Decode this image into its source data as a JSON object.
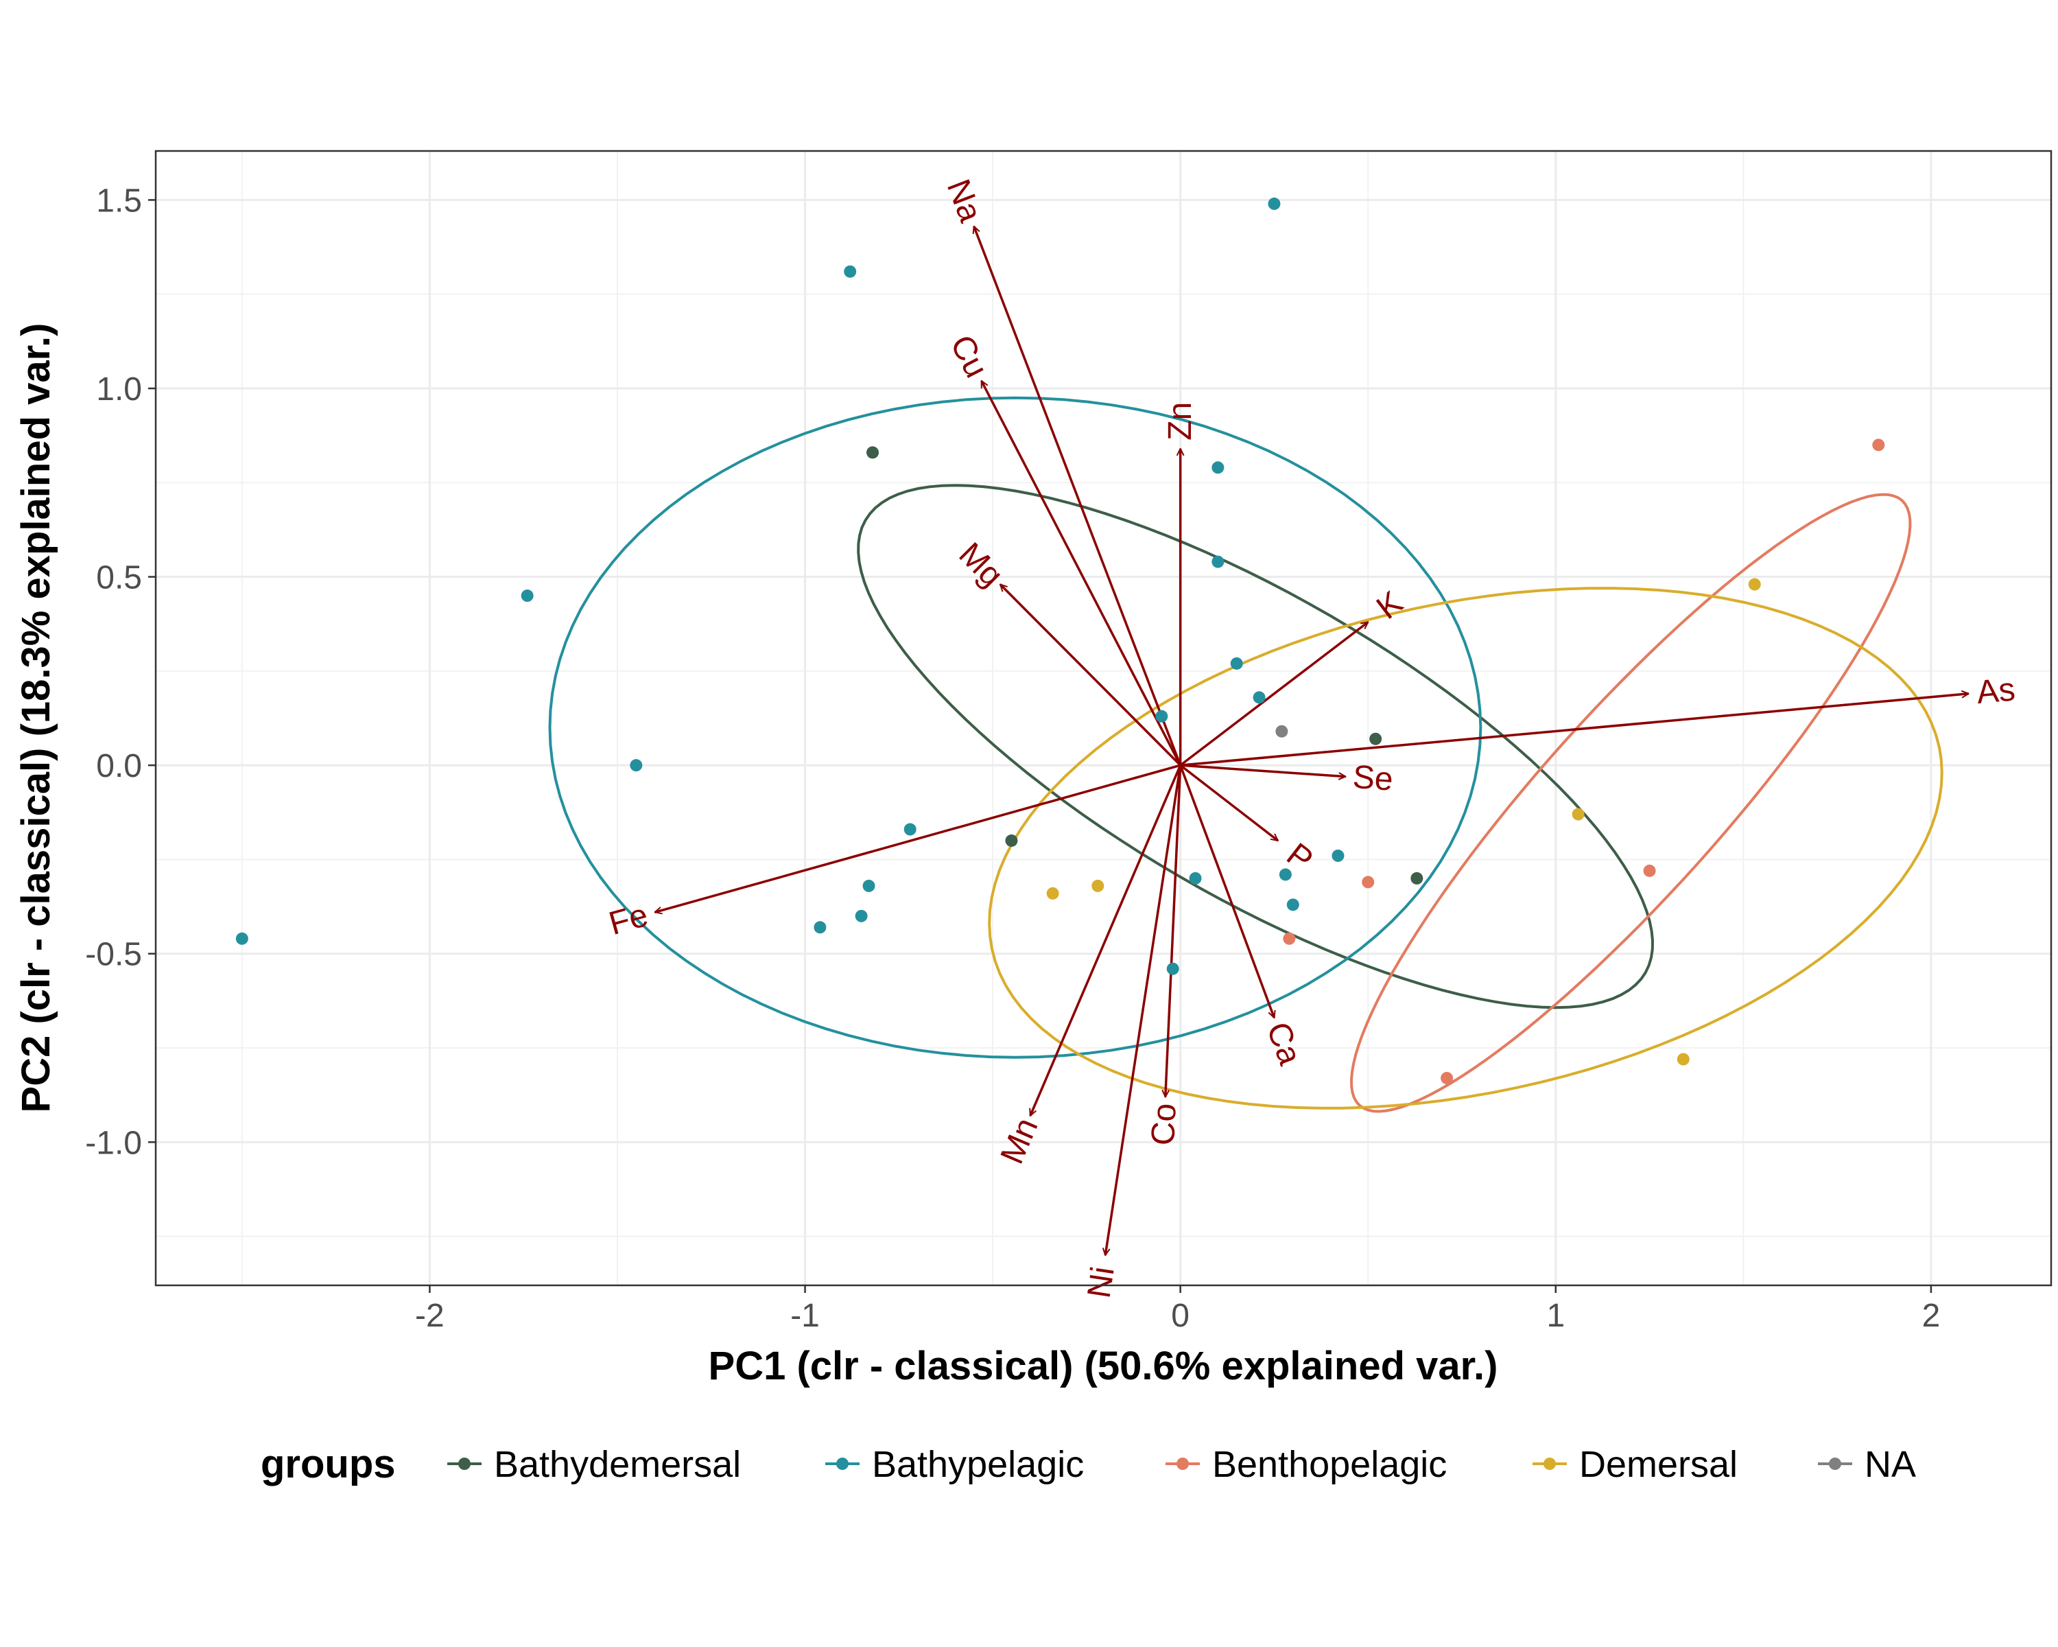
{
  "chart_data": {
    "type": "scatter",
    "subtype": "pca-biplot",
    "xlabel": "PC1 (clr - classical) (50.6% explained var.)",
    "ylabel": "PC2 (clr - classical) (18.3% explained var.)",
    "xlim": [
      -2.73,
      2.32
    ],
    "ylim": [
      -1.38,
      1.63
    ],
    "x_ticks": [
      -2,
      -1,
      0,
      1,
      2
    ],
    "x_tick_labels": [
      "-2",
      "-1",
      "0",
      "1",
      "2"
    ],
    "y_ticks": [
      -1.0,
      -0.5,
      0.0,
      0.5,
      1.0,
      1.5
    ],
    "y_tick_labels": [
      "-1.0",
      "-0.5",
      "0.0",
      "0.5",
      "1.0",
      "1.5"
    ],
    "grid": true,
    "legend_position": "bottom",
    "legend_title": "groups",
    "series": [
      {
        "name": "Bathydemersal",
        "color": "#3d5e48",
        "points": [
          [
            -0.82,
            0.83
          ],
          [
            -0.45,
            -0.2
          ],
          [
            0.52,
            0.07
          ],
          [
            0.63,
            -0.3
          ]
        ],
        "ellipse": {
          "cx": 0.2,
          "cy": 0.05,
          "rx": 1.2,
          "ry": 0.4,
          "angle_deg": -30
        }
      },
      {
        "name": "Bathypelagic",
        "color": "#24909e",
        "points": [
          [
            0.25,
            1.49
          ],
          [
            -0.88,
            1.31
          ],
          [
            0.1,
            0.79
          ],
          [
            0.1,
            0.54
          ],
          [
            -1.74,
            0.45
          ],
          [
            0.15,
            0.27
          ],
          [
            0.21,
            0.18
          ],
          [
            -0.05,
            0.13
          ],
          [
            -1.45,
            0.0
          ],
          [
            -0.72,
            -0.17
          ],
          [
            0.42,
            -0.24
          ],
          [
            -0.83,
            -0.32
          ],
          [
            0.04,
            -0.3
          ],
          [
            0.28,
            -0.29
          ],
          [
            -0.85,
            -0.4
          ],
          [
            -0.96,
            -0.43
          ],
          [
            0.3,
            -0.37
          ],
          [
            -0.02,
            -0.54
          ],
          [
            -2.5,
            -0.46
          ]
        ],
        "ellipse": {
          "cx": -0.44,
          "cy": 0.1,
          "rx": 1.24,
          "ry": 0.875,
          "angle_deg": 0
        }
      },
      {
        "name": "Benthopelagic",
        "color": "#e37b60",
        "points": [
          [
            1.86,
            0.85
          ],
          [
            1.25,
            -0.28
          ],
          [
            0.5,
            -0.31
          ],
          [
            0.29,
            -0.46
          ],
          [
            0.71,
            -0.83
          ]
        ],
        "ellipse": {
          "cx": 1.2,
          "cy": -0.1,
          "rx": 1.08,
          "ry": 0.24,
          "angle_deg": 48
        }
      },
      {
        "name": "Demersal",
        "color": "#d9ad2c",
        "points": [
          [
            1.53,
            0.48
          ],
          [
            1.06,
            -0.13
          ],
          [
            -0.22,
            -0.32
          ],
          [
            -0.34,
            -0.34
          ],
          [
            1.34,
            -0.78
          ]
        ],
        "ellipse": {
          "cx": 0.76,
          "cy": -0.22,
          "rx": 1.29,
          "ry": 0.65,
          "angle_deg": 12
        }
      },
      {
        "name": "NA",
        "color": "#808080",
        "points": [
          [
            0.27,
            0.09
          ]
        ]
      }
    ],
    "loadings": {
      "color": "#8b0000",
      "vectors": [
        {
          "name": "Na",
          "x": -0.55,
          "y": 1.43
        },
        {
          "name": "Cu",
          "x": -0.53,
          "y": 1.02
        },
        {
          "name": "Zn",
          "x": 0.0,
          "y": 0.84
        },
        {
          "name": "Mg",
          "x": -0.48,
          "y": 0.48
        },
        {
          "name": "K",
          "x": 0.5,
          "y": 0.38
        },
        {
          "name": "As",
          "x": 2.1,
          "y": 0.19
        },
        {
          "name": "Se",
          "x": 0.44,
          "y": -0.03
        },
        {
          "name": "P",
          "x": 0.26,
          "y": -0.2
        },
        {
          "name": "Ca",
          "x": 0.25,
          "y": -0.67
        },
        {
          "name": "Co",
          "x": -0.04,
          "y": -0.88
        },
        {
          "name": "Mn",
          "x": -0.4,
          "y": -0.93
        },
        {
          "name": "Ni",
          "x": -0.2,
          "y": -1.3
        },
        {
          "name": "Fe",
          "x": -1.4,
          "y": -0.39
        }
      ]
    }
  }
}
